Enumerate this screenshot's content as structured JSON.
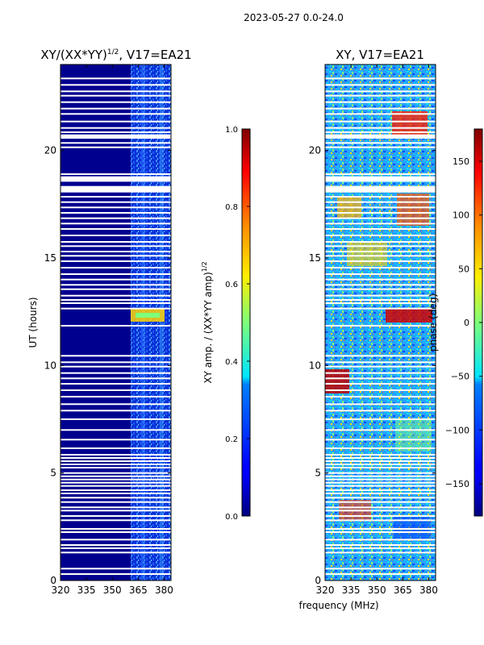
{
  "suptitle": "2023-05-27 0.0-24.0",
  "chart_data": [
    {
      "type": "heatmap",
      "title": "XY/(XX*YY)^1/2, V17=EA21",
      "title_main": "XY/(XX*YY)",
      "title_exp": "1/2",
      "title_tail": ", V17=EA21",
      "ylabel": "UT (hours)",
      "xlabel": "",
      "xlim": [
        320,
        384
      ],
      "ylim": [
        0,
        24
      ],
      "x_ticks": [
        320,
        335,
        350,
        365,
        380
      ],
      "y_ticks": [
        0,
        5,
        10,
        15,
        20
      ],
      "x_tick_labels": [
        "320",
        "335",
        "350",
        "365",
        "380"
      ],
      "y_tick_labels": [
        "0",
        "5",
        "10",
        "15",
        "20"
      ],
      "colorbar": {
        "label": "XY amp. / (XX*YY amp)^1/2",
        "label_main": "XY amp. / (XX*YY amp)",
        "label_exp": "1/2",
        "range": [
          0.0,
          1.0
        ],
        "ticks": [
          0.0,
          0.2,
          0.4,
          0.6,
          0.8,
          1.0
        ],
        "tick_labels": [
          "0.0",
          "0.2",
          "0.4",
          "0.6",
          "0.8",
          "1.0"
        ]
      }
    },
    {
      "type": "heatmap",
      "title": "XY, V17=EA21",
      "ylabel": "",
      "xlabel": "frequency (MHz)",
      "xlim": [
        320,
        384
      ],
      "ylim": [
        0,
        24
      ],
      "x_ticks": [
        320,
        335,
        350,
        365,
        380
      ],
      "y_ticks": [
        0,
        5,
        10,
        15,
        20
      ],
      "x_tick_labels": [
        "320",
        "335",
        "350",
        "365",
        "380"
      ],
      "y_tick_labels": [
        "0",
        "5",
        "10",
        "15",
        "20"
      ],
      "colorbar": {
        "label": "phase (deg)",
        "range": [
          -180,
          180
        ],
        "ticks": [
          -150,
          -100,
          -50,
          0,
          50,
          100,
          150
        ],
        "tick_labels": [
          "−150",
          "−100",
          "−50",
          "0",
          "50",
          "100",
          "150"
        ]
      }
    }
  ],
  "gap_rows_ut": [
    0.3,
    0.55,
    1.3,
    1.5,
    1.65,
    1.9,
    2.25,
    2.4,
    2.8,
    3.0,
    3.25,
    3.4,
    3.65,
    3.85,
    4.05,
    4.2,
    4.4,
    4.55,
    4.7,
    4.85,
    5.0,
    5.25,
    5.4,
    5.55,
    5.7,
    5.85,
    6.15,
    6.55,
    7.0,
    7.5,
    7.9,
    8.2,
    8.55,
    8.85,
    9.15,
    9.4,
    9.65,
    9.95,
    10.15,
    10.45,
    11.85,
    12.65,
    12.9,
    13.05,
    13.25,
    13.55,
    13.75,
    14.0,
    14.25,
    14.55,
    14.85,
    15.1,
    15.3,
    15.55,
    15.75,
    16.05,
    16.35,
    16.6,
    16.85,
    17.1,
    17.35,
    17.6,
    17.85,
    18.9,
    20.15,
    20.35,
    20.85,
    21.05,
    21.35,
    21.7,
    21.95,
    22.25,
    22.55,
    22.75,
    23.05,
    23.35
  ],
  "gap_bands_ut": [
    [
      18.05,
      18.35
    ],
    [
      18.55,
      18.8
    ],
    [
      20.55,
      20.75
    ]
  ]
}
